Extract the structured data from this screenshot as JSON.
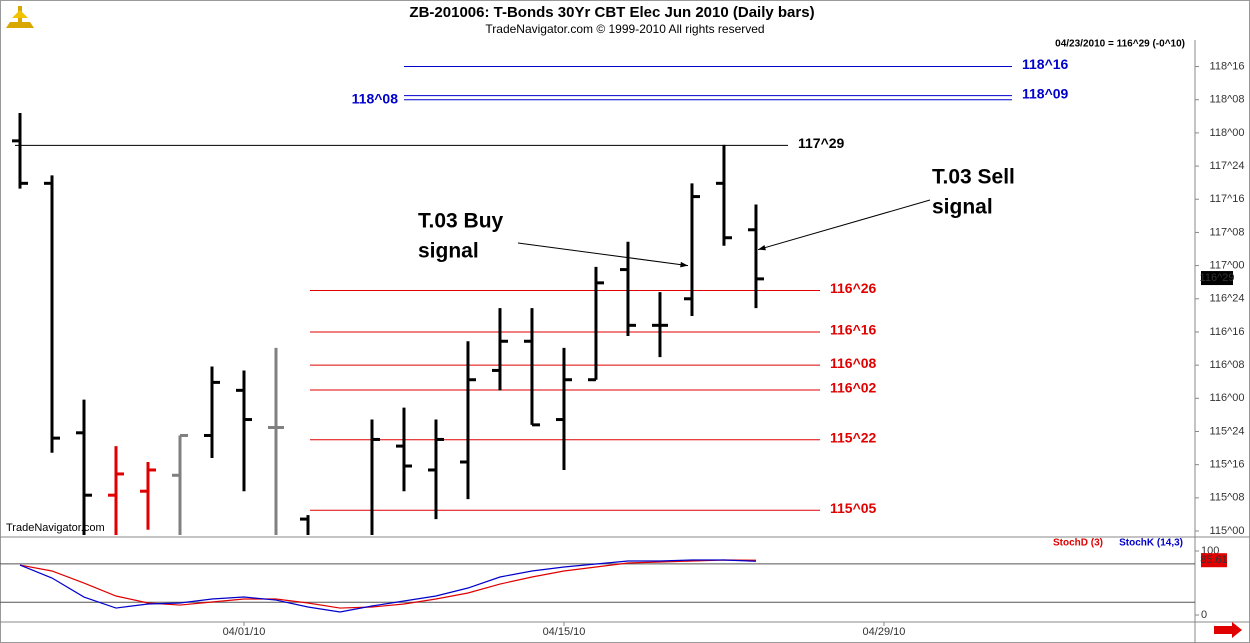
{
  "header": {
    "title": "ZB-201006:  T-Bonds 30Yr CBT Elec Jun 2010  (Daily bars)",
    "copyright": "TradeNavigator.com © 1999-2010 All rights reserved",
    "last_quote": "04/23/2010 = 116^29 (-0^10)"
  },
  "watermark": "TradeNavigator.com",
  "chart_data": [
    {
      "type": "ohlc",
      "x": [
        0,
        1,
        2,
        3,
        4,
        5,
        6,
        7,
        8,
        9,
        11,
        12,
        13,
        14,
        15,
        16,
        17,
        18,
        19,
        20,
        21,
        22,
        23
      ],
      "open": [
        117.94,
        117.62,
        115.74,
        115.27,
        115.3,
        115.42,
        115.72,
        116.06,
        115.78,
        115.09,
        114.9,
        115.64,
        115.46,
        115.52,
        116.21,
        116.43,
        115.84,
        116.14,
        116.97,
        116.55,
        116.75,
        117.62,
        117.27
      ],
      "high": [
        118.15,
        117.68,
        115.99,
        115.64,
        115.52,
        115.72,
        116.24,
        116.21,
        116.38,
        115.12,
        115.84,
        115.93,
        115.84,
        116.43,
        116.68,
        116.68,
        116.38,
        116.99,
        117.18,
        116.8,
        117.62,
        117.91,
        117.46
      ],
      "low": [
        117.58,
        115.59,
        114.9,
        114.9,
        115.01,
        114.9,
        115.55,
        115.3,
        114.9,
        114.9,
        114.9,
        115.3,
        115.09,
        115.24,
        116.06,
        115.8,
        115.46,
        116.14,
        116.47,
        116.31,
        116.62,
        117.15,
        116.68
      ],
      "close": [
        117.62,
        115.7,
        115.27,
        115.43,
        115.46,
        115.72,
        116.12,
        115.84,
        115.78,
        114.9,
        115.69,
        115.49,
        115.69,
        116.14,
        116.43,
        115.8,
        116.14,
        116.87,
        116.55,
        116.55,
        117.52,
        117.21,
        116.9
      ],
      "bar_colors": [
        "#000",
        "#000",
        "#000",
        "#e00000",
        "#e00000",
        "#808080",
        "#000",
        "#000",
        "#808080",
        "#000",
        "#000",
        "#000",
        "#000",
        "#000",
        "#000",
        "#000",
        "#000",
        "#000",
        "#000",
        "#000",
        "#000",
        "#000",
        "#000"
      ],
      "xlim": [
        -0.625,
        36.72
      ],
      "xticks": [
        {
          "value": 7,
          "label": "04/01/10"
        },
        {
          "value": 17,
          "label": "04/15/10"
        },
        {
          "value": 27,
          "label": "04/29/10"
        }
      ],
      "ylim": [
        114.97,
        118.7
      ],
      "yticks": [
        {
          "value": 115,
          "label": "115^00"
        },
        {
          "value": 115.25,
          "label": "115^08"
        },
        {
          "value": 115.5,
          "label": "115^16"
        },
        {
          "value": 115.75,
          "label": "115^24"
        },
        {
          "value": 116,
          "label": "116^00"
        },
        {
          "value": 116.25,
          "label": "116^08"
        },
        {
          "value": 116.5,
          "label": "116^16"
        },
        {
          "value": 116.75,
          "label": "116^24"
        },
        {
          "value": 117,
          "label": "117^00"
        },
        {
          "value": 117.25,
          "label": "117^08"
        },
        {
          "value": 117.5,
          "label": "117^16"
        },
        {
          "value": 117.75,
          "label": "117^24"
        },
        {
          "value": 118,
          "label": "118^00"
        },
        {
          "value": 118.25,
          "label": "118^08"
        },
        {
          "value": 118.5,
          "label": "118^16"
        }
      ],
      "current_price": {
        "value": 116.90625,
        "label": "116^29"
      },
      "levels": [
        {
          "value": 118.5,
          "label": "118^16",
          "color": "#0000cc",
          "label_side": "right"
        },
        {
          "value": 118.28125,
          "label": "118^09",
          "color": "#0000cc",
          "label_side": "right"
        },
        {
          "value": 118.25,
          "label": "118^08",
          "color": "#0000cc",
          "label_side": "left"
        },
        {
          "value": 117.90625,
          "label": "117^29",
          "color": "#000000",
          "label_side": "right"
        },
        {
          "value": 116.8125,
          "label": "116^26",
          "color": "#e00000",
          "label_side": "right"
        },
        {
          "value": 116.5,
          "label": "116^16",
          "color": "#e00000",
          "label_side": "right"
        },
        {
          "value": 116.25,
          "label": "116^08",
          "color": "#e00000",
          "label_side": "right"
        },
        {
          "value": 116.0625,
          "label": "116^02",
          "color": "#e00000",
          "label_side": "right"
        },
        {
          "value": 115.6875,
          "label": "115^22",
          "color": "#e00000",
          "label_side": "right"
        },
        {
          "value": 115.15625,
          "label": "115^05",
          "color": "#e00000",
          "label_side": "right"
        }
      ],
      "annotations": [
        {
          "lines": [
            "T.03 Buy",
            "signal"
          ],
          "x": 21,
          "y": 117.0
        },
        {
          "lines": [
            "T.03 Sell",
            "signal"
          ],
          "x": 23,
          "y": 117.12
        }
      ]
    },
    {
      "type": "line",
      "x": [
        0,
        1,
        2,
        3,
        4,
        5,
        6,
        7,
        8,
        9,
        10,
        11,
        12,
        13,
        14,
        15,
        16,
        17,
        18,
        19,
        20,
        21,
        22,
        23
      ],
      "series": [
        {
          "name": "StochD (3)",
          "color": "#e00000",
          "values": [
            78.1,
            68.8,
            50.0,
            29.7,
            18.8,
            15.6,
            20.3,
            25.0,
            25.0,
            18.8,
            10.9,
            12.5,
            17.2,
            25.0,
            34.4,
            48.4,
            59.4,
            68.8,
            75.0,
            81.3,
            82.8,
            84.4,
            85.9,
            85.61
          ]
        },
        {
          "name": "StochK (14,3)",
          "color": "#0000cc",
          "values": [
            78.1,
            57.8,
            28.1,
            10.9,
            17.2,
            18.8,
            25.0,
            28.1,
            23.4,
            12.5,
            4.7,
            14.1,
            21.9,
            29.7,
            42.2,
            59.4,
            68.8,
            75.0,
            79.7,
            84.4,
            84.4,
            85.9,
            85.9,
            84.0
          ]
        }
      ],
      "xlim": [
        -0.625,
        36.72
      ],
      "ylim": [
        -10.9,
        117.2
      ],
      "yticks": [
        0,
        100
      ],
      "levels": [
        20,
        80
      ]
    }
  ]
}
